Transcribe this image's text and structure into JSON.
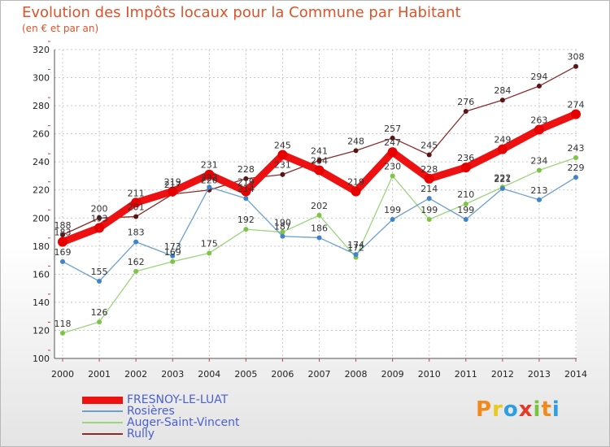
{
  "title": "Evolution des Impôts locaux pour la Commune par Habitant",
  "subtitle": "(en € et par an)",
  "logo": {
    "text": "Proxiti",
    "letters": [
      "P",
      "r",
      "o",
      "x",
      "i",
      "t",
      "i"
    ],
    "colors": [
      "#f08a1c",
      "#e8c91c",
      "#2d9fe0",
      "#e23a2a",
      "#7cc242",
      "#f08a1c",
      "#2d9fe0"
    ]
  },
  "chart_data": {
    "type": "line",
    "title": "Evolution des Impôts locaux pour la Commune par Habitant",
    "subtitle": "(en € et par an)",
    "xlabel": "",
    "ylabel": "",
    "ylim": [
      100,
      320
    ],
    "ytick_step": 20,
    "yticks": [
      "100",
      "120",
      "140",
      "160",
      "180",
      "200",
      "220",
      "240",
      "260",
      "280",
      "300",
      "320"
    ],
    "x": [
      "2000",
      "2001",
      "2002",
      "2003",
      "2004",
      "2005",
      "2006",
      "2007",
      "2008",
      "2009",
      "2010",
      "2011",
      "2012",
      "2013",
      "2014"
    ],
    "legend_position": "bottom-left",
    "series": [
      {
        "name": "Rully",
        "color": "#8b2b2b",
        "point_color": "#5a1414",
        "width": 1.3,
        "marker": 3,
        "values": [
          188,
          200,
          201,
          217,
          220,
          228,
          231,
          241,
          248,
          257,
          245,
          276,
          284,
          294,
          308
        ]
      },
      {
        "name": "Auger-Saint-Vincent",
        "color": "#9ad67c",
        "point_color": "#7bc542",
        "width": 1.3,
        "marker": 3,
        "values": [
          118,
          126,
          162,
          169,
          175,
          192,
          190,
          202,
          172,
          230,
          199,
          210,
          222,
          234,
          243
        ]
      },
      {
        "name": "Rosières",
        "color": "#6d9fd0",
        "point_color": "#3f84c6",
        "width": 1.3,
        "marker": 3,
        "values": [
          169,
          155,
          183,
          173,
          222,
          214,
          187,
          186,
          174,
          199,
          214,
          199,
          221,
          213,
          229
        ]
      },
      {
        "name": "FRESNOY-LE-LUAT",
        "color": "#ee1111",
        "point_color": "#e60000",
        "width": 9,
        "marker": 6,
        "values": [
          183,
          193,
          211,
          219,
          231,
          219,
          245,
          234,
          219,
          247,
          228,
          236,
          249,
          263,
          274
        ]
      }
    ],
    "legend": [
      "FRESNOY-LE-LUAT",
      "Rosières",
      "Auger-Saint-Vincent",
      "Rully"
    ]
  }
}
